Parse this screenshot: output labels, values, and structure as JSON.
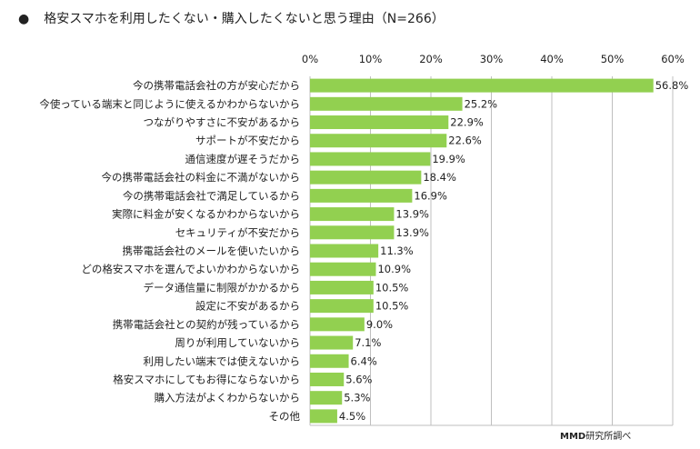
{
  "chart_data": {
    "type": "bar",
    "orientation": "horizontal",
    "title": "格安スマホを利用したくない・購入したくないと思う理由（N=266）",
    "title_bullet": "●",
    "categories": [
      "今の携帯電話会社の方が安心だから",
      "今使っている端末と同じように使えるかわからないから",
      "つながりやすさに不安があるから",
      "サポートが不安だから",
      "通信速度が遅そうだから",
      "今の携帯電話会社の料金に不満がないから",
      "今の携帯電話会社で満足しているから",
      "実際に料金が安くなるかわからないから",
      "セキュリティが不安だから",
      "携帯電話会社のメールを使いたいから",
      "どの格安スマホを選んでよいかわからないから",
      "データ通信量に制限がかかるから",
      "設定に不安があるから",
      "携帯電話会社との契約が残っているから",
      "周りが利用していないから",
      "利用したい端末では使えないから",
      "格安スマホにしてもお得にならないから",
      "購入方法がよくわからないから",
      "その他"
    ],
    "values": [
      56.8,
      25.2,
      22.9,
      22.6,
      19.9,
      18.4,
      16.9,
      13.9,
      13.9,
      11.3,
      10.9,
      10.5,
      10.5,
      9.0,
      7.1,
      6.4,
      5.6,
      5.3,
      4.5
    ],
    "value_labels": [
      "56.8%",
      "25.2%",
      "22.9%",
      "22.6%",
      "19.9%",
      "18.4%",
      "16.9%",
      "13.9%",
      "13.9%",
      "11.3%",
      "10.9%",
      "10.5%",
      "10.5%",
      "9.0%",
      "7.1%",
      "6.4%",
      "5.6%",
      "5.3%",
      "4.5%"
    ],
    "xlim": [
      0,
      60
    ],
    "xticks": [
      "0%",
      "10%",
      "20%",
      "30%",
      "40%",
      "50%",
      "60%"
    ],
    "xaxis_position": "top",
    "grid": true,
    "bar_color": "#92d050",
    "grid_color": "#bfbfbf"
  },
  "source": {
    "bold": "MMD",
    "rest": "研究所調べ"
  }
}
